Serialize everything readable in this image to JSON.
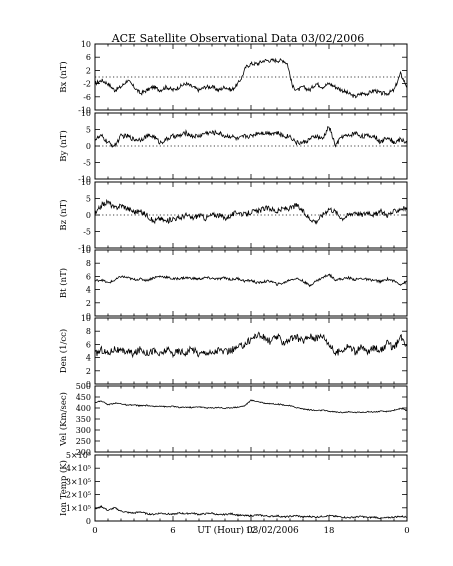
{
  "title": "ACE Satellite Observational Data   03/02/2006",
  "xlabel": "UT (Hour)  03/02/2006",
  "x_tick_labels": [
    "0",
    "6",
    "12",
    "18",
    "0"
  ],
  "chart_data": [
    {
      "type": "line",
      "ylabel": "Bx (nT)",
      "ylim": [
        -10,
        10
      ],
      "yticks": [
        -10,
        -6,
        -2,
        2,
        6,
        10
      ],
      "ytick_labels": [
        "-10",
        "-6",
        "-2",
        "2",
        "6",
        "10"
      ],
      "zero_line": true,
      "x": [
        0,
        0.5,
        1,
        1.5,
        2,
        2.5,
        3,
        3.5,
        4,
        4.5,
        5,
        5.5,
        6,
        6.5,
        7,
        7.5,
        8,
        8.5,
        9,
        9.5,
        10,
        10.5,
        11,
        11.3,
        11.6,
        12,
        12.5,
        13,
        13.5,
        14,
        14.5,
        14.8,
        15.2,
        15.6,
        16,
        16.5,
        17,
        17.5,
        18,
        18.5,
        19,
        19.5,
        20,
        20.5,
        21,
        21.5,
        22,
        22.5,
        23,
        23.5,
        24
      ],
      "values": [
        -2,
        -1,
        -2,
        -4,
        -3,
        -1,
        -3,
        -5,
        -4,
        -3,
        -4,
        -3,
        -4,
        -3,
        -2,
        -3,
        -4,
        -3,
        -3,
        -4,
        -3,
        -4,
        -2,
        0,
        3,
        4,
        4,
        5,
        5,
        5,
        5,
        4,
        -3,
        -4,
        -3,
        -4,
        -2,
        -3,
        -2,
        -3,
        -4,
        -5,
        -6,
        -5,
        -5,
        -4,
        -5,
        -5,
        -4,
        1,
        -3
      ]
    },
    {
      "type": "line",
      "ylabel": "By (nT)",
      "ylim": [
        -10,
        10
      ],
      "yticks": [
        -10,
        -5,
        0,
        5,
        10
      ],
      "ytick_labels": [
        "-10",
        "-5",
        "0",
        "5",
        "10"
      ],
      "zero_line": true,
      "x": [
        0,
        0.5,
        1,
        1.5,
        2,
        2.5,
        3,
        3.5,
        4,
        4.5,
        5,
        5.5,
        6,
        6.5,
        7,
        7.5,
        8,
        8.5,
        9,
        9.5,
        10,
        10.5,
        11,
        11.5,
        12,
        12.5,
        13,
        13.5,
        14,
        14.5,
        15,
        15.5,
        16,
        16.5,
        17,
        17.5,
        18,
        18.5,
        19,
        19.5,
        20,
        20.5,
        21,
        21.5,
        22,
        22.5,
        23,
        23.5,
        24
      ],
      "values": [
        2,
        3,
        1,
        0,
        3,
        3,
        2,
        2,
        3,
        3,
        1,
        2,
        3,
        3,
        4,
        3,
        3,
        4,
        4,
        4,
        3,
        3,
        2,
        3,
        3,
        4,
        4,
        4,
        4,
        3,
        3,
        1,
        1,
        2,
        3,
        2,
        6,
        0,
        3,
        3,
        4,
        3,
        3,
        3,
        1,
        3,
        1,
        2,
        1
      ]
    },
    {
      "type": "line",
      "ylabel": "Bz (nT)",
      "ylim": [
        -10,
        10
      ],
      "yticks": [
        -10,
        -5,
        0,
        5,
        10
      ],
      "ytick_labels": [
        "-10",
        "-5",
        "0",
        "5",
        "10"
      ],
      "zero_line": true,
      "x": [
        0,
        0.5,
        1,
        1.5,
        2,
        2.5,
        3,
        3.5,
        4,
        4.5,
        5,
        5.5,
        6,
        6.5,
        7,
        7.5,
        8,
        8.5,
        9,
        9.5,
        10,
        10.5,
        11,
        11.5,
        12,
        12.5,
        13,
        13.5,
        14,
        14.5,
        15,
        15.5,
        16,
        16.5,
        17,
        17.5,
        18,
        18.5,
        19,
        19.5,
        20,
        20.5,
        21,
        21.5,
        22,
        22.5,
        23,
        23.5,
        24
      ],
      "values": [
        0,
        3,
        4,
        2,
        3,
        2,
        1,
        1,
        0,
        -2,
        -1,
        -2,
        -1,
        -1,
        0,
        -1,
        0,
        -1,
        0,
        0,
        -1,
        0,
        1,
        0,
        1,
        1,
        2,
        2,
        1,
        2,
        2,
        3,
        1,
        -1,
        -2,
        0,
        2,
        1,
        -1,
        0,
        1,
        0,
        1,
        0,
        1,
        0,
        1,
        2,
        2
      ]
    },
    {
      "type": "line",
      "ylabel": "Bt (nT)",
      "ylim": [
        0,
        10
      ],
      "yticks": [
        0,
        2,
        4,
        6,
        8,
        10
      ],
      "ytick_labels": [
        "0",
        "2",
        "4",
        "6",
        "8",
        "10"
      ],
      "zero_line": false,
      "x": [
        0,
        0.5,
        1,
        1.5,
        2,
        2.5,
        3,
        3.5,
        4,
        4.5,
        5,
        5.5,
        6,
        6.5,
        7,
        7.5,
        8,
        8.5,
        9,
        9.5,
        10,
        10.5,
        11,
        11.5,
        12,
        12.5,
        13,
        13.5,
        14,
        14.5,
        15,
        15.5,
        16,
        16.5,
        17,
        17.5,
        18,
        18.5,
        19,
        19.5,
        20,
        20.5,
        21,
        21.5,
        22,
        22.5,
        23,
        23.5,
        24
      ],
      "values": [
        5.3,
        5.5,
        5.0,
        5.4,
        6.0,
        5.8,
        5.5,
        5.6,
        5.4,
        5.8,
        6.0,
        5.9,
        5.6,
        5.7,
        5.8,
        5.7,
        5.6,
        5.8,
        5.7,
        5.6,
        5.8,
        5.5,
        5.7,
        5.3,
        5.4,
        5.0,
        5.2,
        5.3,
        4.8,
        5.0,
        5.5,
        5.7,
        5.3,
        4.6,
        5.3,
        5.8,
        6.3,
        5.5,
        5.6,
        5.8,
        5.5,
        5.7,
        5.5,
        5.4,
        5.2,
        5.6,
        5.3,
        4.8,
        5.2
      ]
    },
    {
      "type": "line",
      "ylabel": "Den (1/cc)",
      "ylim": [
        0,
        10
      ],
      "yticks": [
        0,
        2,
        4,
        6,
        8,
        10
      ],
      "ytick_labels": [
        "0",
        "2",
        "4",
        "6",
        "8",
        "10"
      ],
      "zero_line": false,
      "x": [
        0,
        0.5,
        1,
        1.5,
        2,
        2.5,
        3,
        3.5,
        4,
        4.5,
        5,
        5.5,
        6,
        6.5,
        7,
        7.5,
        8,
        8.5,
        9,
        9.5,
        10,
        10.5,
        11,
        11.5,
        12,
        12.5,
        13,
        13.5,
        14,
        14.5,
        15,
        15.5,
        16,
        16.5,
        17,
        17.5,
        18,
        18.5,
        19,
        19.5,
        20,
        20.5,
        21,
        21.5,
        22,
        22.5,
        23,
        23.5,
        24
      ],
      "values": [
        4.5,
        5.2,
        4.6,
        5.4,
        4.8,
        5.0,
        4.5,
        5.3,
        4.7,
        5.1,
        4.4,
        5.2,
        4.6,
        5.0,
        4.7,
        5.4,
        4.5,
        4.9,
        4.6,
        5.2,
        4.8,
        5.1,
        5.5,
        6.0,
        6.8,
        7.5,
        7.0,
        6.4,
        7.2,
        6.3,
        6.8,
        7.1,
        6.5,
        7.3,
        6.9,
        7.4,
        6.1,
        4.6,
        5.2,
        5.8,
        4.9,
        5.5,
        4.8,
        5.6,
        5.1,
        6.2,
        5.4,
        7.0,
        6.0
      ]
    },
    {
      "type": "line",
      "ylabel": "Vel (Km/sec)",
      "ylim": [
        200,
        500
      ],
      "yticks": [
        200,
        250,
        300,
        350,
        400,
        450,
        500
      ],
      "ytick_labels": [
        "200",
        "250",
        "300",
        "350",
        "400",
        "450",
        "500"
      ],
      "zero_line": false,
      "x": [
        0,
        0.5,
        1,
        1.5,
        2,
        2.5,
        3,
        3.5,
        4,
        4.5,
        5,
        5.5,
        6,
        6.5,
        7,
        7.5,
        8,
        8.5,
        9,
        9.5,
        10,
        10.5,
        11,
        11.5,
        12,
        12.5,
        13,
        13.5,
        14,
        14.5,
        15,
        15.5,
        16,
        16.5,
        17,
        17.5,
        18,
        18.5,
        19,
        19.5,
        20,
        20.5,
        21,
        21.5,
        22,
        22.5,
        23,
        23.5,
        24
      ],
      "values": [
        425,
        432,
        415,
        422,
        420,
        412,
        414,
        410,
        412,
        406,
        410,
        405,
        408,
        402,
        404,
        402,
        406,
        401,
        400,
        403,
        398,
        402,
        404,
        410,
        435,
        430,
        422,
        420,
        418,
        414,
        410,
        402,
        396,
        392,
        388,
        390,
        385,
        382,
        380,
        382,
        380,
        381,
        383,
        382,
        385,
        384,
        390,
        398,
        388
      ]
    },
    {
      "type": "line",
      "ylabel": "Ion Temp (K)",
      "ylim": [
        0,
        500000
      ],
      "yticks": [
        0,
        100000,
        200000,
        300000,
        400000,
        500000
      ],
      "ytick_labels": [
        "0",
        "1×10⁵",
        "2×10⁵",
        "3×10⁵",
        "4×10⁵",
        "5×10⁵"
      ],
      "zero_line": false,
      "x": [
        0,
        0.5,
        1,
        1.5,
        2,
        2.5,
        3,
        3.5,
        4,
        4.5,
        5,
        5.5,
        6,
        6.5,
        7,
        7.5,
        8,
        8.5,
        9,
        9.5,
        10,
        10.5,
        11,
        11.5,
        12,
        12.5,
        13,
        13.5,
        14,
        14.5,
        15,
        15.5,
        16,
        16.5,
        17,
        17.5,
        18,
        18.5,
        19,
        19.5,
        20,
        20.5,
        21,
        21.5,
        22,
        22.5,
        23,
        23.5,
        24
      ],
      "values": [
        90000,
        110000,
        80000,
        100000,
        75000,
        65000,
        60000,
        70000,
        55000,
        50000,
        60000,
        55000,
        50000,
        60000,
        55000,
        60000,
        50000,
        55000,
        60000,
        45000,
        50000,
        55000,
        45000,
        40000,
        40000,
        45000,
        40000,
        35000,
        40000,
        30000,
        35000,
        40000,
        30000,
        35000,
        30000,
        35000,
        40000,
        35000,
        30000,
        25000,
        30000,
        35000,
        25000,
        30000,
        20000,
        25000,
        30000,
        35000,
        30000
      ]
    }
  ]
}
